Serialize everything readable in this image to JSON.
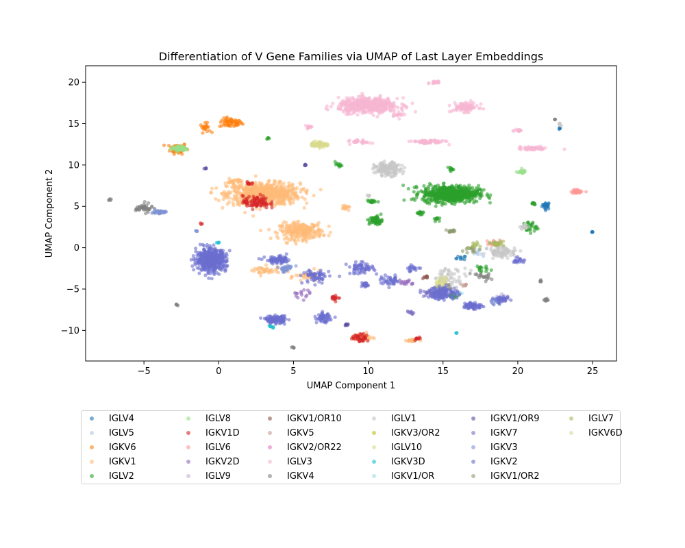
{
  "chart_data": {
    "type": "scatter",
    "title": "Differentiation of V Gene Families via UMAP of Last Layer Embeddings",
    "xlabel": "UMAP Component 1",
    "ylabel": "UMAP Component 2",
    "xlim": [
      -8.9,
      26.6
    ],
    "ylim": [
      -13.7,
      22.0
    ],
    "xticks": [
      -5,
      0,
      5,
      10,
      15,
      20,
      25
    ],
    "yticks": [
      -10,
      -5,
      0,
      5,
      10,
      15,
      20
    ],
    "grid": false,
    "legend_placement": "below plot",
    "series": [
      {
        "name": "IGLV4",
        "color": "#1f77b4",
        "clusters": [
          [
            21.9,
            5.1,
            0.25,
            0.4,
            25
          ],
          [
            22.8,
            14.4,
            0.05,
            0.1,
            6
          ],
          [
            25.0,
            1.9,
            0.05,
            0.05,
            5
          ],
          [
            16.2,
            -1.3,
            0.3,
            0.3,
            10
          ]
        ]
      },
      {
        "name": "IGLV5",
        "color": "#aec7e8",
        "clusters": [
          [
            17.5,
            -0.5,
            0.5,
            0.5,
            10
          ]
        ]
      },
      {
        "name": "IGKV6",
        "color": "#ff7f0e",
        "clusters": [
          [
            0.8,
            15.1,
            0.7,
            0.5,
            60
          ],
          [
            -2.7,
            12.0,
            0.5,
            0.6,
            70
          ],
          [
            -0.9,
            14.5,
            0.3,
            0.5,
            20
          ]
        ]
      },
      {
        "name": "IGKV1",
        "color": "#ffbb78",
        "clusters": [
          [
            3.0,
            6.5,
            2.2,
            1.2,
            700
          ],
          [
            5.5,
            2.0,
            1.3,
            0.9,
            260
          ],
          [
            1.0,
            8.0,
            0.5,
            0.3,
            30
          ],
          [
            9.5,
            -10.8,
            0.6,
            0.4,
            60
          ],
          [
            8.5,
            4.8,
            0.3,
            0.2,
            15
          ],
          [
            6.0,
            -3.5,
            0.8,
            0.6,
            30
          ],
          [
            3.0,
            -2.8,
            1.0,
            0.5,
            40
          ],
          [
            13.0,
            -11.2,
            0.4,
            0.2,
            20
          ]
        ]
      },
      {
        "name": "IGLV2",
        "color": "#2ca02c",
        "clusters": [
          [
            15.5,
            6.5,
            1.7,
            0.9,
            650
          ],
          [
            10.5,
            3.3,
            0.4,
            0.5,
            60
          ],
          [
            20.8,
            2.5,
            0.4,
            0.6,
            30
          ],
          [
            8.0,
            10.0,
            0.2,
            0.2,
            12
          ],
          [
            15.5,
            9.5,
            0.2,
            0.2,
            12
          ],
          [
            15.8,
            -5.8,
            0.3,
            0.3,
            15
          ],
          [
            3.3,
            13.2,
            0.1,
            0.1,
            5
          ],
          [
            10.2,
            5.6,
            0.3,
            0.2,
            20
          ],
          [
            13.5,
            4.2,
            0.2,
            0.3,
            15
          ],
          [
            14.5,
            3.5,
            0.2,
            0.2,
            10
          ],
          [
            17.5,
            -2.5,
            0.4,
            0.4,
            15
          ],
          [
            21.0,
            5.3,
            0.2,
            0.2,
            10
          ]
        ]
      },
      {
        "name": "IGLV8",
        "color": "#98df8a",
        "clusters": [
          [
            -2.6,
            12.0,
            0.5,
            0.3,
            60
          ],
          [
            20.2,
            9.2,
            0.3,
            0.2,
            20
          ]
        ]
      },
      {
        "name": "IGKV1D",
        "color": "#d62728",
        "clusters": [
          [
            2.5,
            5.5,
            0.8,
            0.7,
            90
          ],
          [
            2.0,
            7.8,
            0.3,
            0.2,
            10
          ],
          [
            9.5,
            -10.9,
            0.5,
            0.4,
            40
          ],
          [
            13.3,
            -11.0,
            0.2,
            0.2,
            10
          ],
          [
            7.8,
            -6.0,
            0.3,
            0.3,
            15
          ],
          [
            -1.2,
            2.9,
            0.1,
            0.1,
            3
          ]
        ]
      },
      {
        "name": "IGLV6",
        "color": "#ff9896",
        "clusters": [
          [
            24.0,
            6.8,
            0.4,
            0.2,
            35
          ],
          [
            18.5,
            0.5,
            0.5,
            0.4,
            20
          ]
        ]
      },
      {
        "name": "IGKV2D",
        "color": "#9467bd",
        "clusters": [
          [
            12.5,
            -4.2,
            0.5,
            0.4,
            15
          ],
          [
            5.5,
            -5.5,
            0.5,
            0.5,
            15
          ]
        ]
      },
      {
        "name": "IGLV9",
        "color": "#c5b0d5",
        "clusters": [
          [
            19.0,
            -6.0,
            0.3,
            0.3,
            10
          ]
        ]
      },
      {
        "name": "IGKV1/OR10",
        "color": "#8c564b",
        "clusters": [
          [
            13.8,
            -3.5,
            0.2,
            0.2,
            8
          ]
        ]
      },
      {
        "name": "IGKV5",
        "color": "#c49c94",
        "clusters": [
          [
            16.5,
            -4.5,
            0.2,
            0.2,
            8
          ]
        ]
      },
      {
        "name": "IGKV2/OR22",
        "color": "#e377c2",
        "clusters": [
          [
            14.5,
            -5.5,
            0.2,
            0.2,
            8
          ]
        ]
      },
      {
        "name": "IGLV3",
        "color": "#f7b6d2",
        "clusters": [
          [
            10.0,
            17.2,
            1.8,
            0.8,
            500
          ],
          [
            16.5,
            17.0,
            0.8,
            0.5,
            100
          ],
          [
            14.0,
            12.8,
            1.0,
            0.2,
            70
          ],
          [
            21.0,
            12.0,
            0.9,
            0.2,
            50
          ],
          [
            9.5,
            12.8,
            0.6,
            0.2,
            30
          ],
          [
            14.5,
            20.0,
            0.3,
            0.2,
            20
          ],
          [
            20.0,
            14.2,
            0.3,
            0.2,
            15
          ],
          [
            6.0,
            14.6,
            0.3,
            0.15,
            12
          ],
          [
            12.0,
            16.0,
            0.4,
            0.3,
            15
          ]
        ]
      },
      {
        "name": "IGKV4",
        "color": "#7f7f7f",
        "clusters": [
          [
            -5.0,
            4.8,
            0.5,
            0.5,
            40
          ],
          [
            -7.3,
            5.8,
            0.1,
            0.1,
            5
          ],
          [
            -2.8,
            -6.9,
            0.1,
            0.1,
            5
          ],
          [
            5.0,
            -12.1,
            0.1,
            0.1,
            5
          ],
          [
            21.9,
            -6.3,
            0.2,
            0.2,
            10
          ],
          [
            22.5,
            15.5,
            0.05,
            0.05,
            4
          ],
          [
            17.5,
            -3.5,
            0.6,
            0.5,
            20
          ],
          [
            15.0,
            -5.0,
            0.5,
            0.5,
            20
          ],
          [
            21.5,
            -4.0,
            0.1,
            0.1,
            5
          ]
        ]
      },
      {
        "name": "IGLV1",
        "color": "#c7c7c7",
        "clusters": [
          [
            11.3,
            9.5,
            0.8,
            0.7,
            160
          ],
          [
            19.0,
            -0.5,
            0.9,
            0.6,
            80
          ],
          [
            15.5,
            -3.5,
            1.0,
            1.0,
            50
          ],
          [
            20.5,
            2.5,
            0.3,
            0.3,
            15
          ],
          [
            10.0,
            6.3,
            0.1,
            0.1,
            4
          ],
          [
            22.8,
            15.0,
            0.1,
            0.3,
            6
          ]
        ]
      },
      {
        "name": "IGKV3/OR2",
        "color": "#bcbd22",
        "clusters": [
          [
            15.0,
            -4.0,
            0.3,
            0.3,
            8
          ]
        ]
      },
      {
        "name": "IGLV10",
        "color": "#dbdb8d",
        "clusters": [
          [
            6.7,
            12.5,
            0.5,
            0.3,
            80
          ],
          [
            14.8,
            -4.5,
            0.4,
            0.4,
            15
          ]
        ]
      },
      {
        "name": "IGKV3D",
        "color": "#17becf",
        "clusters": [
          [
            3.5,
            -9.5,
            0.2,
            0.2,
            8
          ],
          [
            0.0,
            0.6,
            0.1,
            0.1,
            4
          ],
          [
            15.9,
            -10.3,
            0.05,
            0.05,
            3
          ]
        ]
      },
      {
        "name": "IGKV1/OR",
        "color": "#9edae5",
        "clusters": [
          [
            16.0,
            -5.5,
            0.2,
            0.2,
            8
          ]
        ]
      },
      {
        "name": "IGKV1/OR9",
        "color": "#5a4fa0",
        "clusters": [
          [
            5.8,
            10.0,
            0.1,
            0.1,
            5
          ],
          [
            -0.9,
            9.6,
            0.1,
            0.1,
            4
          ],
          [
            8.6,
            -9.3,
            0.2,
            0.1,
            8
          ]
        ]
      },
      {
        "name": "IGKV7",
        "color": "#7b6fc2",
        "clusters": [
          [
            14.0,
            -5.5,
            0.5,
            0.4,
            20
          ],
          [
            12.8,
            -7.8,
            0.3,
            0.2,
            10
          ]
        ]
      },
      {
        "name": "IGKV3",
        "color": "#7f93d4",
        "clusters": [
          [
            -4.0,
            4.3,
            0.4,
            0.2,
            40
          ],
          [
            -1.5,
            2.0,
            0.1,
            0.1,
            4
          ],
          [
            4.5,
            -2.5,
            0.5,
            0.4,
            30
          ],
          [
            18.5,
            -6.5,
            0.4,
            0.4,
            20
          ]
        ]
      },
      {
        "name": "IGKV2",
        "color": "#6b6ecf",
        "clusters": [
          [
            -0.5,
            -1.5,
            0.9,
            1.2,
            500
          ],
          [
            3.8,
            -8.7,
            0.6,
            0.4,
            120
          ],
          [
            7.0,
            -8.5,
            0.4,
            0.5,
            60
          ],
          [
            4.0,
            -1.5,
            0.8,
            0.4,
            80
          ],
          [
            6.5,
            -3.5,
            0.8,
            0.8,
            60
          ],
          [
            9.5,
            -2.5,
            0.8,
            0.6,
            60
          ],
          [
            15.0,
            -5.5,
            0.9,
            0.7,
            120
          ],
          [
            17.0,
            -7.0,
            0.6,
            0.4,
            60
          ],
          [
            19.0,
            -6.3,
            0.4,
            0.3,
            30
          ],
          [
            11.5,
            -4.0,
            0.6,
            0.5,
            40
          ],
          [
            9.8,
            -4.5,
            0.3,
            0.3,
            20
          ],
          [
            13.0,
            -2.5,
            0.5,
            0.3,
            20
          ],
          [
            20.0,
            -1.5,
            0.4,
            0.3,
            20
          ]
        ]
      },
      {
        "name": "IGKV1/OR2",
        "color": "#8c9a6e",
        "clusters": [
          [
            15.6,
            2.0,
            0.3,
            0.2,
            15
          ],
          [
            17.0,
            -0.2,
            0.4,
            0.4,
            15
          ]
        ]
      },
      {
        "name": "IGLV7",
        "color": "#a5b95e",
        "clusters": [
          [
            18.5,
            0.5,
            0.5,
            0.3,
            20
          ],
          [
            17.0,
            0.3,
            0.4,
            0.3,
            10
          ]
        ]
      },
      {
        "name": "IGKV6D",
        "color": "#d7d8a3",
        "clusters": [
          [
            15.0,
            -3.8,
            0.4,
            0.3,
            15
          ]
        ]
      }
    ]
  }
}
